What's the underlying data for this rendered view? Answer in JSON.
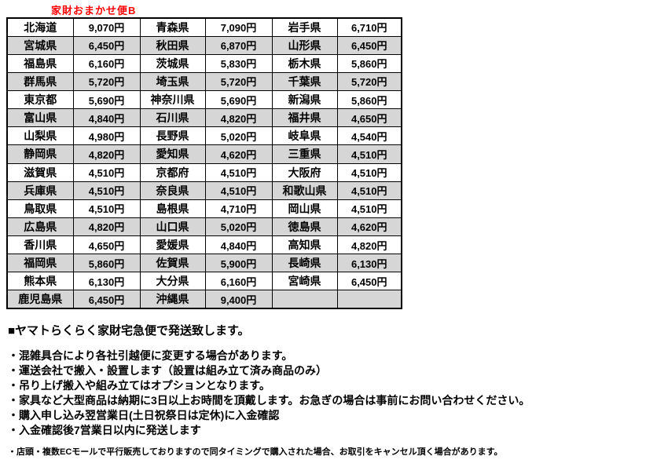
{
  "title": "家財おまかせ便B",
  "colors": {
    "title_red": "#ff0000",
    "row_shade": "#d6d6d6",
    "border": "#000000"
  },
  "shipping_table": {
    "currency_suffix": "円",
    "rows": [
      [
        "北海道",
        "9,070円",
        "青森県",
        "7,090円",
        "岩手県",
        "6,710円"
      ],
      [
        "宮城県",
        "6,450円",
        "秋田県",
        "6,870円",
        "山形県",
        "6,450円"
      ],
      [
        "福島県",
        "6,160円",
        "茨城県",
        "5,830円",
        "栃木県",
        "5,860円"
      ],
      [
        "群馬県",
        "5,720円",
        "埼玉県",
        "5,720円",
        "千葉県",
        "5,720円"
      ],
      [
        "東京都",
        "5,690円",
        "神奈川県",
        "5,690円",
        "新潟県",
        "5,860円"
      ],
      [
        "富山県",
        "4,840円",
        "石川県",
        "4,820円",
        "福井県",
        "4,650円"
      ],
      [
        "山梨県",
        "4,980円",
        "長野県",
        "5,020円",
        "岐阜県",
        "4,540円"
      ],
      [
        "静岡県",
        "4,820円",
        "愛知県",
        "4,620円",
        "三重県",
        "4,510円"
      ],
      [
        "滋賀県",
        "4,510円",
        "京都府",
        "4,510円",
        "大阪府",
        "4,510円"
      ],
      [
        "兵庫県",
        "4,510円",
        "奈良県",
        "4,510円",
        "和歌山県",
        "4,510円"
      ],
      [
        "鳥取県",
        "4,510円",
        "島根県",
        "4,710円",
        "岡山県",
        "4,510円"
      ],
      [
        "広島県",
        "4,820円",
        "山口県",
        "5,020円",
        "徳島県",
        "4,620円"
      ],
      [
        "香川県",
        "4,650円",
        "愛媛県",
        "4,840円",
        "高知県",
        "4,820円"
      ],
      [
        "福岡県",
        "5,860円",
        "佐賀県",
        "5,900円",
        "長崎県",
        "6,130円"
      ],
      [
        "熊本県",
        "6,130円",
        "大分県",
        "6,160円",
        "宮崎県",
        "6,450円"
      ],
      [
        "鹿児島県",
        "6,450円",
        "沖縄県",
        "9,400円",
        "",
        ""
      ]
    ]
  },
  "notes": {
    "heading": "■ヤマトらくらく家財宅急便で発送致します。",
    "bullets": [
      "・混雑具合により各社引越便に変更する場合があります。",
      "・運送会社で搬入・設置します（設置は組み立て済み商品のみ）",
      "・吊り上げ搬入や組み立てはオプションとなります。",
      "・家具など大型商品は納期に3日以上お時間を頂戴します。お急ぎの場合は事前にお問い合わせください。",
      "・購入申し込み翌営業日(土日祝祭日は定休)に入金確認",
      "・入金確認後7営業日以内に発送します"
    ],
    "small_note": "・店頭・複数ECモールで平行販売しておりますので同タイミングで購入された場合、お取引をキャンセル頂く場合があります。"
  }
}
